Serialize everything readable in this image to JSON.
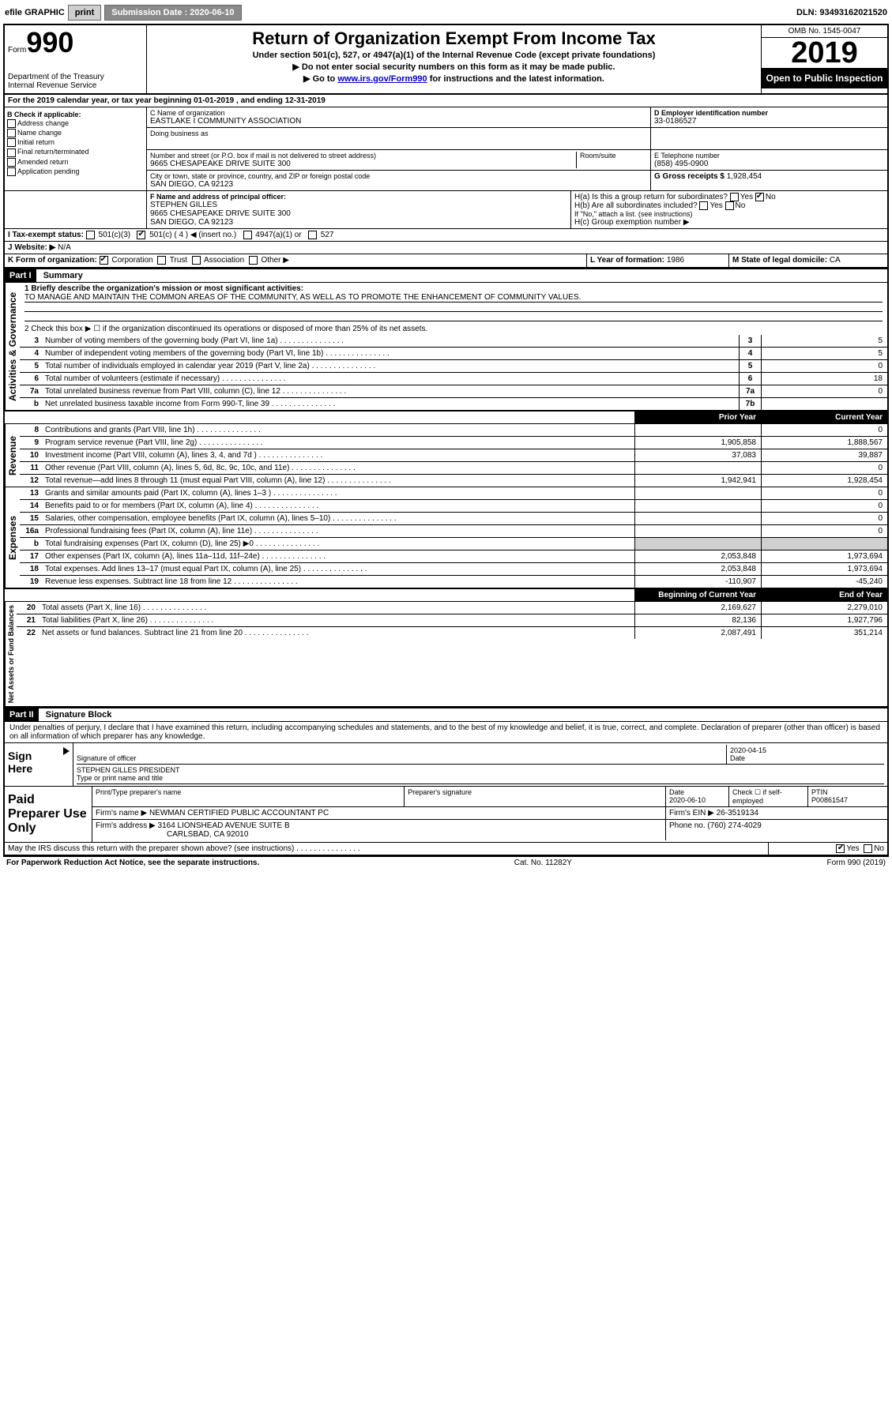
{
  "topbar": {
    "efile": "efile GRAPHIC",
    "print": "print",
    "subdate_label": "Submission Date : 2020-06-10",
    "dln": "DLN: 93493162021520"
  },
  "header": {
    "form_word": "Form",
    "form_num": "990",
    "dept": "Department of the Treasury\nInternal Revenue Service",
    "title": "Return of Organization Exempt From Income Tax",
    "sub1": "Under section 501(c), 527, or 4947(a)(1) of the Internal Revenue Code (except private foundations)",
    "sub2": "▶ Do not enter social security numbers on this form as it may be made public.",
    "sub3_pre": "▶ Go to ",
    "sub3_link": "www.irs.gov/Form990",
    "sub3_post": " for instructions and the latest information.",
    "omb": "OMB No. 1545-0047",
    "year": "2019",
    "inspect": "Open to Public Inspection"
  },
  "lineA": "For the 2019 calendar year, or tax year beginning 01-01-2019   , and ending 12-31-2019",
  "boxB": {
    "title": "B Check if applicable:",
    "opts": [
      "Address change",
      "Name change",
      "Initial return",
      "Final return/terminated",
      "Amended return",
      "Application pending"
    ]
  },
  "boxC": {
    "label": "C Name of organization",
    "name": "EASTLAKE I COMMUNITY ASSOCIATION",
    "dba_label": "Doing business as",
    "addr_label": "Number and street (or P.O. box if mail is not delivered to street address)",
    "room_label": "Room/suite",
    "addr": "9665 CHESAPEAKE DRIVE SUITE 300",
    "city_label": "City or town, state or province, country, and ZIP or foreign postal code",
    "city": "SAN DIEGO, CA  92123"
  },
  "boxD": {
    "label": "D Employer identification number",
    "val": "33-0186527"
  },
  "boxE": {
    "label": "E Telephone number",
    "val": "(858) 495-0900"
  },
  "boxG": {
    "label": "G Gross receipts $",
    "val": "1,928,454"
  },
  "boxF": {
    "label": "F  Name and address of principal officer:",
    "name": "STEPHEN GILLES",
    "addr1": "9665 CHESAPEAKE DRIVE SUITE 300",
    "addr2": "SAN DIEGO, CA  92123"
  },
  "boxH": {
    "a": "H(a)  Is this a group return for subordinates?",
    "b": "H(b)  Are all subordinates included?",
    "b_note": "If \"No,\" attach a list. (see instructions)",
    "c": "H(c)  Group exemption number ▶"
  },
  "boxI": {
    "label": "I   Tax-exempt status:",
    "o1": "501(c)(3)",
    "o2": "501(c) ( 4 ) ◀ (insert no.)",
    "o3": "4947(a)(1) or",
    "o4": "527"
  },
  "boxJ": {
    "label": "J   Website: ▶",
    "val": "N/A"
  },
  "boxK": {
    "label": "K Form of organization:",
    "o1": "Corporation",
    "o2": "Trust",
    "o3": "Association",
    "o4": "Other ▶"
  },
  "boxL": {
    "label": "L Year of formation:",
    "val": "1986"
  },
  "boxM": {
    "label": "M State of legal domicile:",
    "val": "CA"
  },
  "part1": {
    "bar": "Part I",
    "title": "Summary",
    "q1": "1  Briefly describe the organization's mission or most significant activities:",
    "q1ans": "TO MANAGE AND MAINTAIN THE COMMON AREAS OF THE COMMUNITY, AS WELL AS TO PROMOTE THE ENHANCEMENT OF COMMUNITY VALUES.",
    "q2": "2   Check this box ▶ ☐  if the organization discontinued its operations or disposed of more than 25% of its net assets.",
    "tabs": {
      "gov": "Activities & Governance",
      "rev": "Revenue",
      "exp": "Expenses",
      "net": "Net Assets or Fund Balances"
    },
    "col_prior": "Prior Year",
    "col_curr": "Current Year",
    "col_boy": "Beginning of Current Year",
    "col_eoy": "End of Year",
    "rows_gov": [
      {
        "n": "3",
        "d": "Number of voting members of the governing body (Part VI, line 1a)",
        "box": "3",
        "v": "5"
      },
      {
        "n": "4",
        "d": "Number of independent voting members of the governing body (Part VI, line 1b)",
        "box": "4",
        "v": "5"
      },
      {
        "n": "5",
        "d": "Total number of individuals employed in calendar year 2019 (Part V, line 2a)",
        "box": "5",
        "v": "0"
      },
      {
        "n": "6",
        "d": "Total number of volunteers (estimate if necessary)",
        "box": "6",
        "v": "18"
      },
      {
        "n": "7a",
        "d": "Total unrelated business revenue from Part VIII, column (C), line 12",
        "box": "7a",
        "v": "0"
      },
      {
        "n": "b",
        "d": "Net unrelated business taxable income from Form 990-T, line 39",
        "box": "7b",
        "v": ""
      }
    ],
    "rows_rev": [
      {
        "n": "8",
        "d": "Contributions and grants (Part VIII, line 1h)",
        "p": "",
        "c": "0"
      },
      {
        "n": "9",
        "d": "Program service revenue (Part VIII, line 2g)",
        "p": "1,905,858",
        "c": "1,888,567"
      },
      {
        "n": "10",
        "d": "Investment income (Part VIII, column (A), lines 3, 4, and 7d )",
        "p": "37,083",
        "c": "39,887"
      },
      {
        "n": "11",
        "d": "Other revenue (Part VIII, column (A), lines 5, 6d, 8c, 9c, 10c, and 11e)",
        "p": "",
        "c": "0"
      },
      {
        "n": "12",
        "d": "Total revenue—add lines 8 through 11 (must equal Part VIII, column (A), line 12)",
        "p": "1,942,941",
        "c": "1,928,454"
      }
    ],
    "rows_exp": [
      {
        "n": "13",
        "d": "Grants and similar amounts paid (Part IX, column (A), lines 1–3 )",
        "p": "",
        "c": "0"
      },
      {
        "n": "14",
        "d": "Benefits paid to or for members (Part IX, column (A), line 4)",
        "p": "",
        "c": "0"
      },
      {
        "n": "15",
        "d": "Salaries, other compensation, employee benefits (Part IX, column (A), lines 5–10)",
        "p": "",
        "c": "0"
      },
      {
        "n": "16a",
        "d": "Professional fundraising fees (Part IX, column (A), line 11e)",
        "p": "",
        "c": "0"
      },
      {
        "n": "b",
        "d": "Total fundraising expenses (Part IX, column (D), line 25) ▶0",
        "p": "shade",
        "c": "shade"
      },
      {
        "n": "17",
        "d": "Other expenses (Part IX, column (A), lines 11a–11d, 11f–24e)",
        "p": "2,053,848",
        "c": "1,973,694"
      },
      {
        "n": "18",
        "d": "Total expenses. Add lines 13–17 (must equal Part IX, column (A), line 25)",
        "p": "2,053,848",
        "c": "1,973,694"
      },
      {
        "n": "19",
        "d": "Revenue less expenses. Subtract line 18 from line 12",
        "p": "-110,907",
        "c": "-45,240"
      }
    ],
    "rows_net": [
      {
        "n": "20",
        "d": "Total assets (Part X, line 16)",
        "p": "2,169,627",
        "c": "2,279,010"
      },
      {
        "n": "21",
        "d": "Total liabilities (Part X, line 26)",
        "p": "82,136",
        "c": "1,927,796"
      },
      {
        "n": "22",
        "d": "Net assets or fund balances. Subtract line 21 from line 20",
        "p": "2,087,491",
        "c": "351,214"
      }
    ]
  },
  "part2": {
    "bar": "Part II",
    "title": "Signature Block",
    "decl": "Under penalties of perjury, I declare that I have examined this return, including accompanying schedules and statements, and to the best of my knowledge and belief, it is true, correct, and complete. Declaration of preparer (other than officer) is based on all information of which preparer has any knowledge."
  },
  "sign": {
    "side": "Sign Here",
    "sig_label": "Signature of officer",
    "date_label": "Date",
    "date": "2020-04-15",
    "name": "STEPHEN GILLES  PRESIDENT",
    "name_label": "Type or print name and title"
  },
  "paid": {
    "side": "Paid Preparer Use Only",
    "h1": "Print/Type preparer's name",
    "h2": "Preparer's signature",
    "h3": "Date",
    "h3v": "2020-06-10",
    "h4": "Check ☐ if self-employed",
    "h5": "PTIN",
    "h5v": "P00861547",
    "firm_label": "Firm's name    ▶",
    "firm": "NEWMAN CERTIFIED PUBLIC ACCOUNTANT PC",
    "ein_label": "Firm's EIN ▶",
    "ein": "26-3519134",
    "addr_label": "Firm's address ▶",
    "addr1": "3164 LIONSHEAD AVENUE SUITE B",
    "addr2": "CARLSBAD, CA  92010",
    "phone_label": "Phone no.",
    "phone": "(760) 274-4029"
  },
  "discuss": "May the IRS discuss this return with the preparer shown above? (see instructions)",
  "footer": {
    "left": "For Paperwork Reduction Act Notice, see the separate instructions.",
    "mid": "Cat. No. 11282Y",
    "right": "Form 990 (2019)"
  },
  "yesno": {
    "yes": "Yes",
    "no": "No"
  }
}
